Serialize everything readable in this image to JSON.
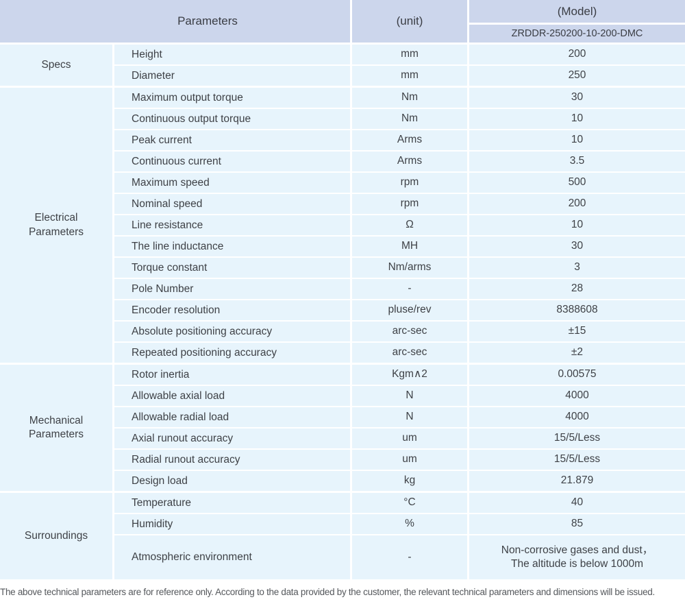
{
  "header": {
    "parameters_label": "Parameters",
    "unit_label": "(unit)",
    "model_label": "(Model)",
    "model_value": "ZRDDR-250200-10-200-DMC"
  },
  "groups": [
    {
      "label": "Specs",
      "rows": [
        {
          "name": "Height",
          "unit": "mm",
          "value": "200"
        },
        {
          "name": "Diameter",
          "unit": "mm",
          "value": "250"
        }
      ]
    },
    {
      "label": "Electrical\nParameters",
      "rows": [
        {
          "name": "Maximum output torque",
          "unit": "Nm",
          "value": "30"
        },
        {
          "name": "Continuous output torque",
          "unit": "Nm",
          "value": "10"
        },
        {
          "name": "Peak current",
          "unit": "Arms",
          "value": "10"
        },
        {
          "name": "Continuous current",
          "unit": "Arms",
          "value": "3.5"
        },
        {
          "name": "Maximum speed",
          "unit": "rpm",
          "value": "500"
        },
        {
          "name": "Nominal speed",
          "unit": "rpm",
          "value": "200"
        },
        {
          "name": "Line resistance",
          "unit": "Ω",
          "value": "10"
        },
        {
          "name": "The line inductance",
          "unit": "MH",
          "value": "30"
        },
        {
          "name": "Torque constant",
          "unit": "Nm/arms",
          "value": "3"
        },
        {
          "name": "Pole Number",
          "unit": "-",
          "value": "28"
        },
        {
          "name": "Encoder resolution",
          "unit": "pluse/rev",
          "value": "8388608"
        },
        {
          "name": "Absolute positioning accuracy",
          "unit": "arc-sec",
          "value": "±15"
        },
        {
          "name": "Repeated positioning accuracy",
          "unit": "arc-sec",
          "value": "±2"
        }
      ]
    },
    {
      "label": "Mechanical\nParameters",
      "rows": [
        {
          "name": "Rotor inertia",
          "unit": "Kgm∧2",
          "value": "0.00575"
        },
        {
          "name": "Allowable axial load",
          "unit": "N",
          "value": "4000"
        },
        {
          "name": "Allowable radial load",
          "unit": "N",
          "value": "4000"
        },
        {
          "name": "Axial runout accuracy",
          "unit": "um",
          "value": "15/5/Less"
        },
        {
          "name": "Radial runout accuracy",
          "unit": "um",
          "value": "15/5/Less"
        },
        {
          "name": "Design load",
          "unit": "kg",
          "value": "21.879"
        }
      ]
    },
    {
      "label": "Surroundings",
      "rows": [
        {
          "name": "Temperature",
          "unit": "°C",
          "value": "40"
        },
        {
          "name": "Humidity",
          "unit": "%",
          "value": "85"
        },
        {
          "name": "Atmospheric environment",
          "unit": "-",
          "value": "Non-corrosive gases and dust，\nThe altitude is below 1000m"
        }
      ]
    }
  ],
  "footer": {
    "note": "The above technical parameters are for reference only. According to the data provided by the customer, the relevant technical parameters and dimensions will be issued."
  },
  "colors": {
    "header_bg": "#ccd6ec",
    "row_bg": "#e7f4fc",
    "text": "#3e4146",
    "footer_text": "#55585c"
  }
}
